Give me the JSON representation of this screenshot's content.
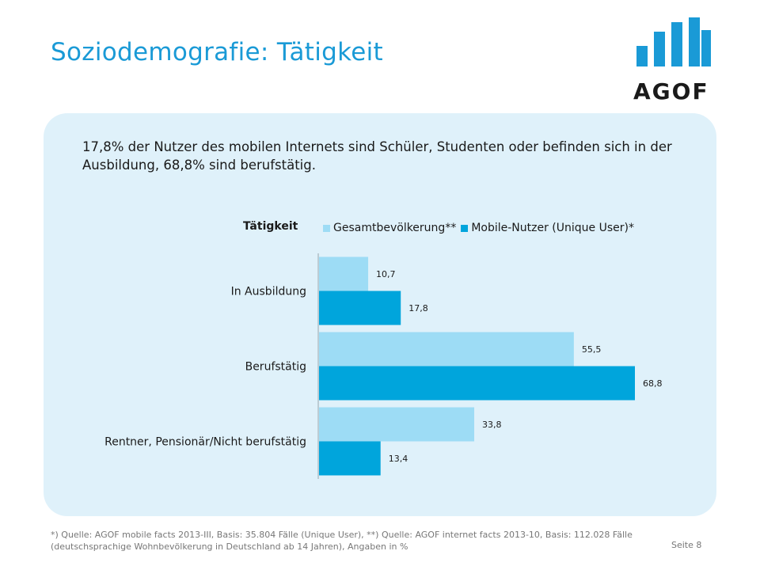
{
  "title": "Soziodemografie: Tätigkeit",
  "logo": {
    "text": "AGOF",
    "color": "#1a9ad6"
  },
  "headline": "17,8% der Nutzer des mobilen Internets sind Schüler, Studenten oder befinden sich in der Ausbildung, 68,8% sind berufstätig.",
  "colors": {
    "panel": "#dff1fa",
    "title": "#1a9ad6"
  },
  "chart_data": {
    "type": "bar",
    "orientation": "horizontal",
    "title": "Tätigkeit",
    "categories": [
      "In Ausbildung",
      "Berufstätig",
      "Rentner, Pensionär/Nicht berufstätig"
    ],
    "series": [
      {
        "name": "Gesamtbevölkerung**",
        "color": "#9ddcf5",
        "values": [
          10.7,
          55.5,
          33.8
        ],
        "labels": [
          "10,7",
          "55,5",
          "33,8"
        ]
      },
      {
        "name": "Mobile-Nutzer (Unique User)*",
        "color": "#00a5dc",
        "values": [
          17.8,
          68.8,
          13.4
        ],
        "labels": [
          "17,8",
          "68,8",
          "13,4"
        ]
      }
    ],
    "xlim": [
      0,
      70
    ],
    "legend": "top",
    "grid": false
  },
  "footnote": "*) Quelle: AGOF mobile facts 2013-III, Basis: 35.804 Fälle (Unique User), **) Quelle: AGOF internet facts 2013-10, Basis: 112.028 Fälle (deutschsprachige Wohnbevölkerung in Deutschland ab 14 Jahren), Angaben in %",
  "page_label": "Seite 8"
}
